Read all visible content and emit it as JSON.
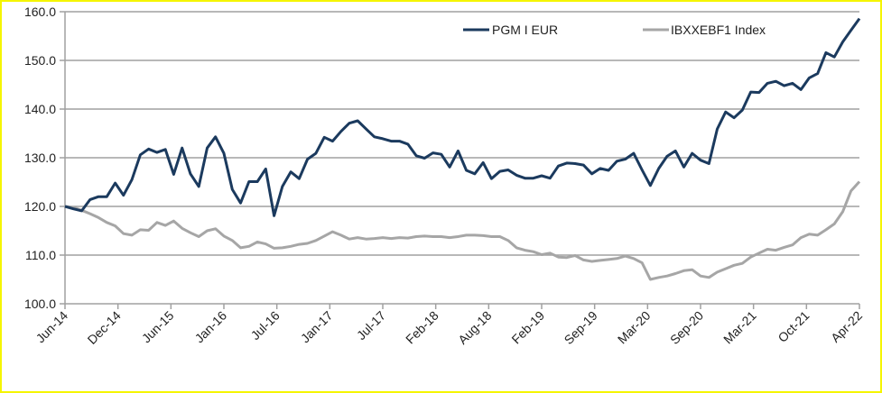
{
  "chart_data": {
    "type": "line",
    "title": "",
    "xlabel": "",
    "ylabel": "",
    "ylim": [
      100,
      160
    ],
    "yticks": [
      "100.0",
      "110.0",
      "120.0",
      "130.0",
      "140.0",
      "150.0",
      "160.0"
    ],
    "ytick_values": [
      100,
      110,
      120,
      130,
      140,
      150,
      160
    ],
    "x_tick_labels": [
      "Jun-14",
      "Dec-14",
      "Jun-15",
      "Jan-16",
      "Jul-16",
      "Jan-17",
      "Jul-17",
      "Feb-18",
      "Aug-18",
      "Feb-19",
      "Sep-19",
      "Mar-20",
      "Sep-20",
      "Mar-21",
      "Oct-21",
      "Apr-22"
    ],
    "x_range": [
      "Jun-14",
      "Apr-22"
    ],
    "grid": "horizontal",
    "legend": "top-right",
    "series": [
      {
        "name": "PGM I EUR",
        "color": "#1b3a5e",
        "values": [
          120,
          119.5,
          119.1,
          121.4,
          122.0,
          122.0,
          124.8,
          122.3,
          125.5,
          130.6,
          131.8,
          131.1,
          131.7,
          126.6,
          132.0,
          126.7,
          124.1,
          132.0,
          134.3,
          130.9,
          123.5,
          120.7,
          125.1,
          125.1,
          127.7,
          118.1,
          124.1,
          127.1,
          125.7,
          129.7,
          130.9,
          134.2,
          133.4,
          135.4,
          137.1,
          137.6,
          135.9,
          134.3,
          133.9,
          133.4,
          133.4,
          132.8,
          130.4,
          129.9,
          131.0,
          130.7,
          128.1,
          131.4,
          127.4,
          126.7,
          129.0,
          125.7,
          127.2,
          127.5,
          126.4,
          125.8,
          125.8,
          126.3,
          125.8,
          128.3,
          128.9,
          128.8,
          128.5,
          126.7,
          127.8,
          127.4,
          129.3,
          129.7,
          130.9,
          127.5,
          124.3,
          127.8,
          130.3,
          131.4,
          128.1,
          130.9,
          129.5,
          128.8,
          135.9,
          139.4,
          138.2,
          139.8,
          143.5,
          143.4,
          145.3,
          145.7,
          144.8,
          145.3,
          144.0,
          146.4,
          147.3,
          151.6,
          150.7,
          153.8,
          156.2,
          158.6
        ]
      },
      {
        "name": "IBXXEBF1 Index",
        "color": "#a6a6a6",
        "values": [
          120,
          119.8,
          119.2,
          118.5,
          117.7,
          116.7,
          116.0,
          114.4,
          114.1,
          115.2,
          115.1,
          116.7,
          116.1,
          117.0,
          115.5,
          114.6,
          113.8,
          115.0,
          115.4,
          113.9,
          113.0,
          111.5,
          111.8,
          112.7,
          112.3,
          111.4,
          111.5,
          111.8,
          112.2,
          112.4,
          113.0,
          113.9,
          114.8,
          114.1,
          113.3,
          113.6,
          113.3,
          113.4,
          113.6,
          113.4,
          113.6,
          113.5,
          113.8,
          113.9,
          113.8,
          113.8,
          113.6,
          113.8,
          114.1,
          114.1,
          114.0,
          113.8,
          113.8,
          113.0,
          111.5,
          111.0,
          110.7,
          110.1,
          110.4,
          109.6,
          109.5,
          109.9,
          109.0,
          108.7,
          108.9,
          109.1,
          109.3,
          109.8,
          109.3,
          108.4,
          105.0,
          105.4,
          105.7,
          106.2,
          106.8,
          107.0,
          105.7,
          105.4,
          106.5,
          107.2,
          107.9,
          108.3,
          109.6,
          110.4,
          111.2,
          111.0,
          111.6,
          112.1,
          113.6,
          114.3,
          114.1,
          115.2,
          116.4,
          118.9,
          123.2,
          125.1
        ]
      }
    ]
  }
}
